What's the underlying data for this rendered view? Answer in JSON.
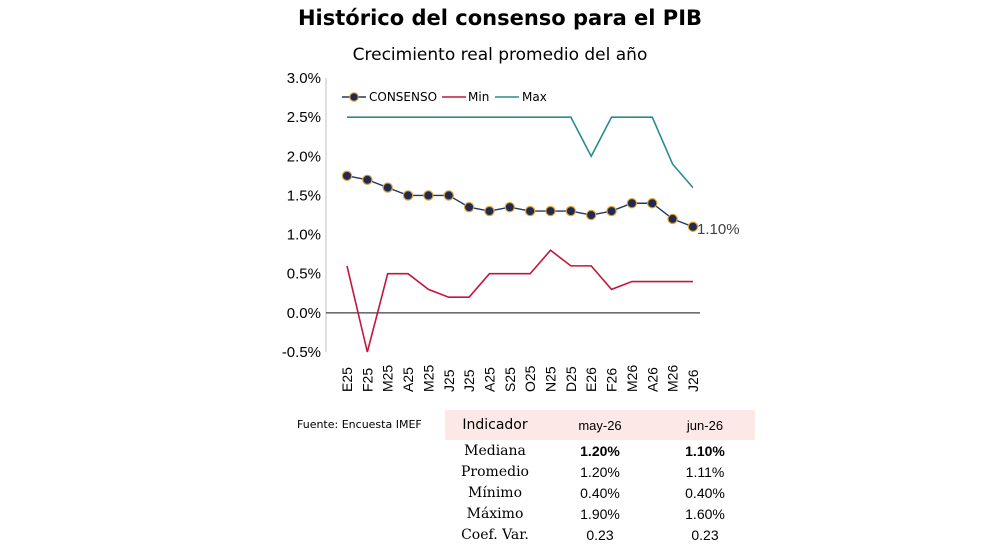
{
  "title": "Histórico del consenso para el PIB",
  "subtitle": "Crecimiento real promedio del año",
  "chart_data": {
    "type": "line",
    "categories": [
      "E25",
      "F25",
      "M25",
      "A25",
      "M25",
      "J25",
      "J25",
      "A25",
      "S25",
      "O25",
      "N25",
      "D25",
      "E26",
      "F26",
      "M26",
      "A26",
      "M26",
      "J26"
    ],
    "series": [
      {
        "name": "CONSENSO",
        "values": [
          1.75,
          1.7,
          1.6,
          1.5,
          1.5,
          1.5,
          1.35,
          1.3,
          1.35,
          1.3,
          1.3,
          1.3,
          1.25,
          1.3,
          1.4,
          1.4,
          1.2,
          1.1
        ],
        "color": "#1f3864",
        "marker": "circle"
      },
      {
        "name": "Min",
        "values": [
          0.6,
          -0.5,
          0.5,
          0.5,
          0.3,
          0.2,
          0.2,
          0.5,
          0.5,
          0.5,
          0.8,
          0.6,
          0.6,
          0.3,
          0.4,
          0.4,
          0.4,
          0.4
        ],
        "color": "#c0183c"
      },
      {
        "name": "Max",
        "values": [
          2.5,
          2.5,
          2.5,
          2.5,
          2.5,
          2.5,
          2.5,
          2.5,
          2.5,
          2.5,
          2.5,
          2.5,
          2.0,
          2.5,
          2.5,
          2.5,
          1.9,
          1.6
        ],
        "color": "#2a8a92"
      }
    ],
    "y_ticks": [
      "3.0%",
      "2.5%",
      "2.0%",
      "1.5%",
      "1.0%",
      "0.5%",
      "0.0%",
      "-0.5%"
    ],
    "ylim": [
      -0.5,
      3.0
    ],
    "end_label": "1.10%",
    "legend_position": "top-left",
    "grid": false
  },
  "source": "Fuente: Encuesta IMEF",
  "table": {
    "headers": [
      "Indicador",
      "may-26",
      "jun-26"
    ],
    "rows": [
      {
        "label": "Mediana",
        "may": "1.20%",
        "jun": "1.10%"
      },
      {
        "label": "Promedio",
        "may": "1.20%",
        "jun": "1.11%"
      },
      {
        "label": "Mínimo",
        "may": "0.40%",
        "jun": "0.40%"
      },
      {
        "label": "Máximo",
        "may": "1.90%",
        "jun": "1.60%"
      },
      {
        "label": "Coef. Var.",
        "may": "0.23",
        "jun": "0.23"
      }
    ]
  }
}
